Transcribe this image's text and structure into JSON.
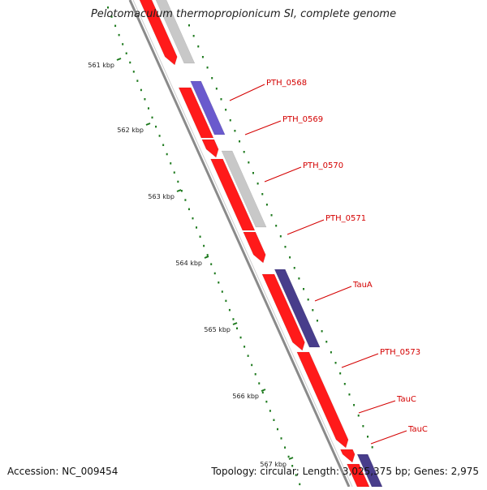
{
  "title": "Pelotomaculum thermopropionicum SI, complete genome",
  "footer": {
    "accession": "Accession: NC_009454",
    "topology": "Topology: circular; Length: 3,025,375 bp; Genes: 2,975"
  },
  "colors": {
    "forward_gene": "#ff1a1a",
    "backbone": "#8a8a8a",
    "ticks": "#1e7a1e",
    "gray_feature": "#c8c8c8",
    "blue_feature": "#6a5acd",
    "navy_feature": "#483d8b",
    "label": "#d40000"
  },
  "kbp_labels": [
    "561 kbp",
    "562 kbp",
    "563 kbp",
    "564 kbp",
    "565 kbp",
    "566 kbp",
    "567 kbp"
  ],
  "gene_labels": [
    "PTH_0568",
    "PTH_0569",
    "PTH_0570",
    "PTH_0571",
    "TauA",
    "PTH_0573",
    "TauC",
    "TauC"
  ]
}
